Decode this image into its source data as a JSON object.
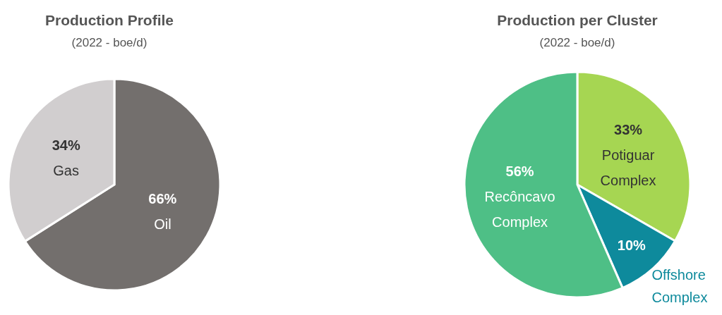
{
  "chart_data": [
    {
      "type": "pie",
      "title": "Production Profile",
      "subtitle": "(2022 - boe/d)",
      "categories": [
        "Oil",
        "Gas"
      ],
      "values": [
        66,
        34
      ],
      "colors": [
        "#736f6d",
        "#d1cecf"
      ],
      "value_labels": [
        "66%",
        "34%"
      ]
    },
    {
      "type": "pie",
      "title": "Production per Cluster",
      "subtitle": "(2022 - boe/d)",
      "categories": [
        "Potiguar Complex",
        "Offshore Complex",
        "Recôncavo Complex"
      ],
      "values": [
        33,
        10,
        56
      ],
      "colors": [
        "#a6d652",
        "#0e8a9c",
        "#4ebf86"
      ],
      "value_labels": [
        "33%",
        "10%",
        "56%"
      ]
    }
  ]
}
